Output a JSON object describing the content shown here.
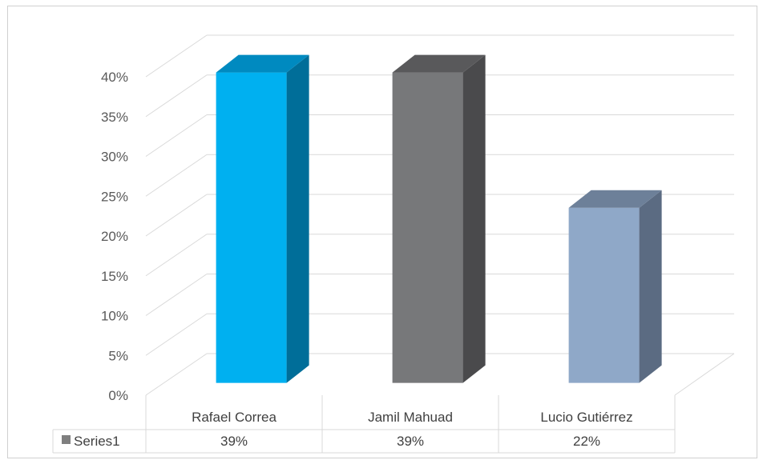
{
  "chart_data": {
    "type": "bar",
    "style": "3d-column",
    "categories": [
      "Rafael Correa",
      "Jamil Mahuad",
      "Lucio Gutiérrez"
    ],
    "series": [
      {
        "name": "Series1",
        "values": [
          0.39,
          0.39,
          0.22
        ],
        "value_labels": [
          "39%",
          "39%",
          "22%"
        ]
      }
    ],
    "ylim": [
      0,
      0.4
    ],
    "yticks": [
      0,
      0.05,
      0.1,
      0.15,
      0.2,
      0.25,
      0.3,
      0.35,
      0.4
    ],
    "ytick_labels": [
      "0%",
      "5%",
      "10%",
      "15%",
      "20%",
      "25%",
      "30%",
      "35%",
      "40%"
    ],
    "grid": true,
    "data_table": true,
    "legend_key_color": "#7f7f7f",
    "bar_colors": [
      {
        "front": "#00b0f0",
        "top": "#008ac0",
        "side": "#006e99"
      },
      {
        "front": "#77787a",
        "top": "#59595b",
        "side": "#4a4a4c"
      },
      {
        "front": "#8fa8c8",
        "top": "#6d8099",
        "side": "#5b6b82"
      }
    ]
  }
}
